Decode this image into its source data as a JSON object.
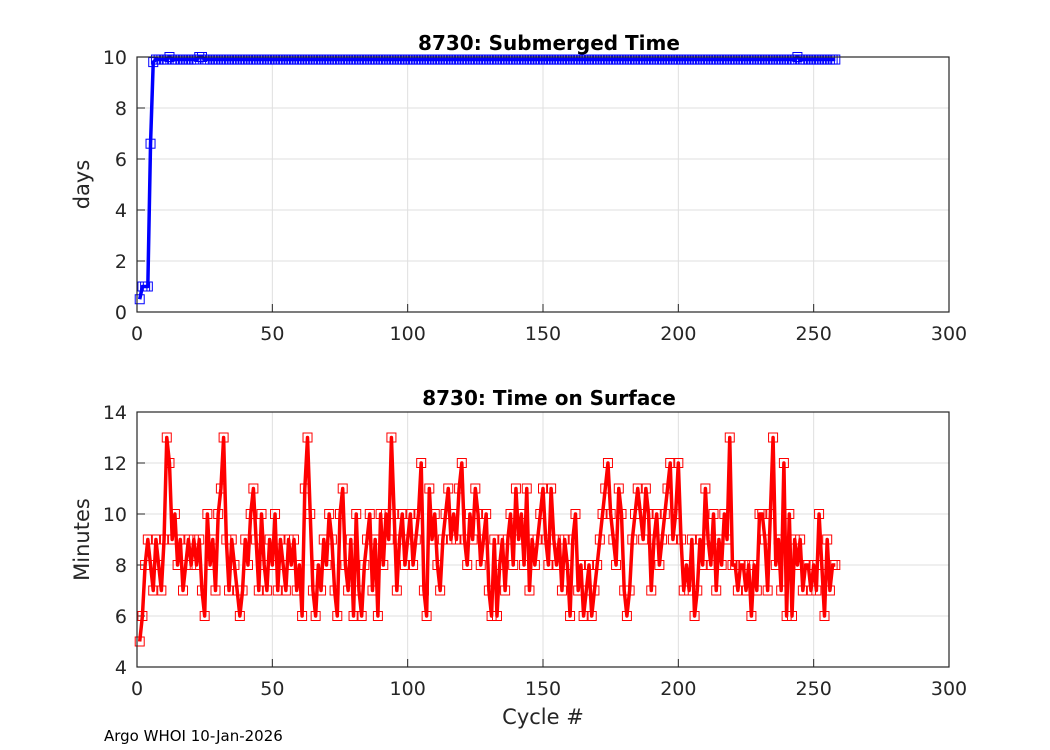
{
  "footer": "Argo WHOI 10-Jan-2026",
  "chart_data": [
    {
      "type": "line",
      "title": "8730: Submerged Time",
      "xlabel": "",
      "ylabel": "days",
      "xlim": [
        0,
        300
      ],
      "ylim": [
        0,
        10
      ],
      "xticks": [
        0,
        50,
        100,
        150,
        200,
        250,
        300
      ],
      "yticks": [
        0,
        2,
        4,
        6,
        8,
        10
      ],
      "grid": true,
      "color": "#0000ff",
      "marker": "square",
      "x_start": 1,
      "values": [
        0.5,
        1,
        1,
        1,
        6.6,
        9.8,
        9.9,
        9.9,
        9.9,
        9.9,
        9.9,
        10,
        9.9,
        9.9,
        9.9,
        9.9,
        9.9,
        9.9,
        9.9,
        9.9,
        9.9,
        9.9,
        10,
        10,
        9.9,
        9.9,
        9.9,
        9.9,
        9.9,
        9.9,
        9.9,
        9.9,
        9.9,
        9.9,
        9.9,
        9.9,
        9.9,
        9.9,
        9.9,
        9.9,
        9.9,
        9.9,
        9.9,
        9.9,
        9.9,
        9.9,
        9.9,
        9.9,
        9.9,
        9.9,
        9.9,
        9.9,
        9.9,
        9.9,
        9.9,
        9.9,
        9.9,
        9.9,
        9.9,
        9.9,
        9.9,
        9.9,
        9.9,
        9.9,
        9.9,
        9.9,
        9.9,
        9.9,
        9.9,
        9.9,
        9.9,
        9.9,
        9.9,
        9.9,
        9.9,
        9.9,
        9.9,
        9.9,
        9.9,
        9.9,
        9.9,
        9.9,
        9.9,
        9.9,
        9.9,
        9.9,
        9.9,
        9.9,
        9.9,
        9.9,
        9.9,
        9.9,
        9.9,
        9.9,
        9.9,
        9.9,
        9.9,
        9.9,
        9.9,
        9.9,
        9.9,
        9.9,
        9.9,
        9.9,
        9.9,
        9.9,
        9.9,
        9.9,
        9.9,
        9.9,
        9.9,
        9.9,
        9.9,
        9.9,
        9.9,
        9.9,
        9.9,
        9.9,
        9.9,
        9.9,
        9.9,
        9.9,
        9.9,
        9.9,
        9.9,
        9.9,
        9.9,
        9.9,
        9.9,
        9.9,
        9.9,
        9.9,
        9.9,
        9.9,
        9.9,
        9.9,
        9.9,
        9.9,
        9.9,
        9.9,
        9.9,
        9.9,
        9.9,
        9.9,
        9.9,
        9.9,
        9.9,
        9.9,
        9.9,
        9.9,
        9.9,
        9.9,
        9.9,
        9.9,
        9.9,
        9.9,
        9.9,
        9.9,
        9.9,
        9.9,
        9.9,
        9.9,
        9.9,
        9.9,
        9.9,
        9.9,
        9.9,
        9.9,
        9.9,
        9.9,
        9.9,
        9.9,
        9.9,
        9.9,
        9.9,
        9.9,
        9.9,
        9.9,
        9.9,
        9.9,
        9.9,
        9.9,
        9.9,
        9.9,
        9.9,
        9.9,
        9.9,
        9.9,
        9.9,
        9.9,
        9.9,
        9.9,
        9.9,
        9.9,
        9.9,
        9.9,
        9.9,
        9.9,
        9.9,
        9.9,
        9.9,
        9.9,
        9.9,
        9.9,
        9.9,
        9.9,
        9.9,
        9.9,
        9.9,
        9.9,
        9.9,
        9.9,
        9.9,
        9.9,
        9.9,
        9.9,
        9.9,
        9.9,
        9.9,
        9.9,
        9.9,
        9.9,
        9.9,
        9.9,
        9.9,
        9.9,
        9.9,
        9.9,
        9.9,
        9.9,
        9.9,
        9.9,
        9.9,
        9.9,
        9.9,
        9.9,
        9.9,
        9.9,
        9.9,
        9.9,
        9.9,
        9.9,
        9.9,
        10,
        9.9,
        9.9,
        9.9,
        9.9,
        9.9,
        9.9,
        9.9,
        9.9,
        9.9,
        9.9,
        9.9,
        9.9,
        9.9,
        9.9
      ]
    },
    {
      "type": "line",
      "title": "8730: Time on Surface",
      "xlabel": "Cycle #",
      "ylabel": "Minutes",
      "xlim": [
        0,
        300
      ],
      "ylim": [
        4,
        14
      ],
      "xticks": [
        0,
        50,
        100,
        150,
        200,
        250,
        300
      ],
      "yticks": [
        4,
        6,
        8,
        10,
        12,
        14
      ],
      "grid": true,
      "color": "#ff0000",
      "marker": "square",
      "x_start": 1,
      "values": [
        5,
        6,
        8,
        9,
        8,
        7,
        9,
        8,
        7,
        9,
        13,
        12,
        9,
        10,
        8,
        9,
        7,
        8,
        9,
        8,
        9,
        8,
        9,
        7,
        6,
        10,
        8,
        9,
        7,
        10,
        11,
        13,
        9,
        7,
        9,
        8,
        7,
        6,
        7,
        9,
        8,
        10,
        11,
        9,
        7,
        10,
        8,
        7,
        9,
        8,
        10,
        7,
        9,
        8,
        7,
        9,
        8,
        9,
        7,
        8,
        6,
        11,
        13,
        10,
        7,
        6,
        8,
        7,
        9,
        8,
        10,
        9,
        7,
        6,
        10,
        11,
        8,
        7,
        9,
        6,
        10,
        7,
        6,
        8,
        9,
        10,
        7,
        9,
        6,
        10,
        8,
        10,
        9,
        13,
        10,
        7,
        9,
        10,
        8,
        9,
        10,
        8,
        9,
        10,
        12,
        7,
        6,
        11,
        9,
        10,
        8,
        7,
        9,
        10,
        11,
        9,
        10,
        9,
        11,
        12,
        9,
        8,
        10,
        9,
        11,
        10,
        8,
        9,
        10,
        7,
        6,
        9,
        6,
        8,
        9,
        7,
        9,
        10,
        8,
        11,
        9,
        10,
        8,
        11,
        7,
        9,
        8,
        9,
        10,
        11,
        9,
        8,
        11,
        9,
        8,
        9,
        7,
        9,
        8,
        6,
        9,
        10,
        7,
        8,
        6,
        7,
        8,
        6,
        7,
        8,
        9,
        10,
        11,
        12,
        10,
        9,
        8,
        11,
        10,
        7,
        6,
        7,
        9,
        10,
        11,
        10,
        9,
        11,
        10,
        7,
        9,
        10,
        8,
        9,
        10,
        11,
        12,
        9,
        10,
        12,
        9,
        7,
        8,
        7,
        9,
        6,
        7,
        9,
        8,
        11,
        9,
        8,
        10,
        7,
        9,
        8,
        10,
        9,
        13,
        8,
        8,
        7,
        8,
        8,
        7,
        8,
        6,
        8,
        7,
        10,
        10,
        9,
        7,
        10,
        13,
        8,
        9,
        7,
        12,
        6,
        10,
        6,
        9,
        8,
        9,
        7,
        8,
        8,
        7,
        8,
        7,
        10,
        8,
        6,
        9,
        7,
        8,
        8
      ]
    }
  ]
}
